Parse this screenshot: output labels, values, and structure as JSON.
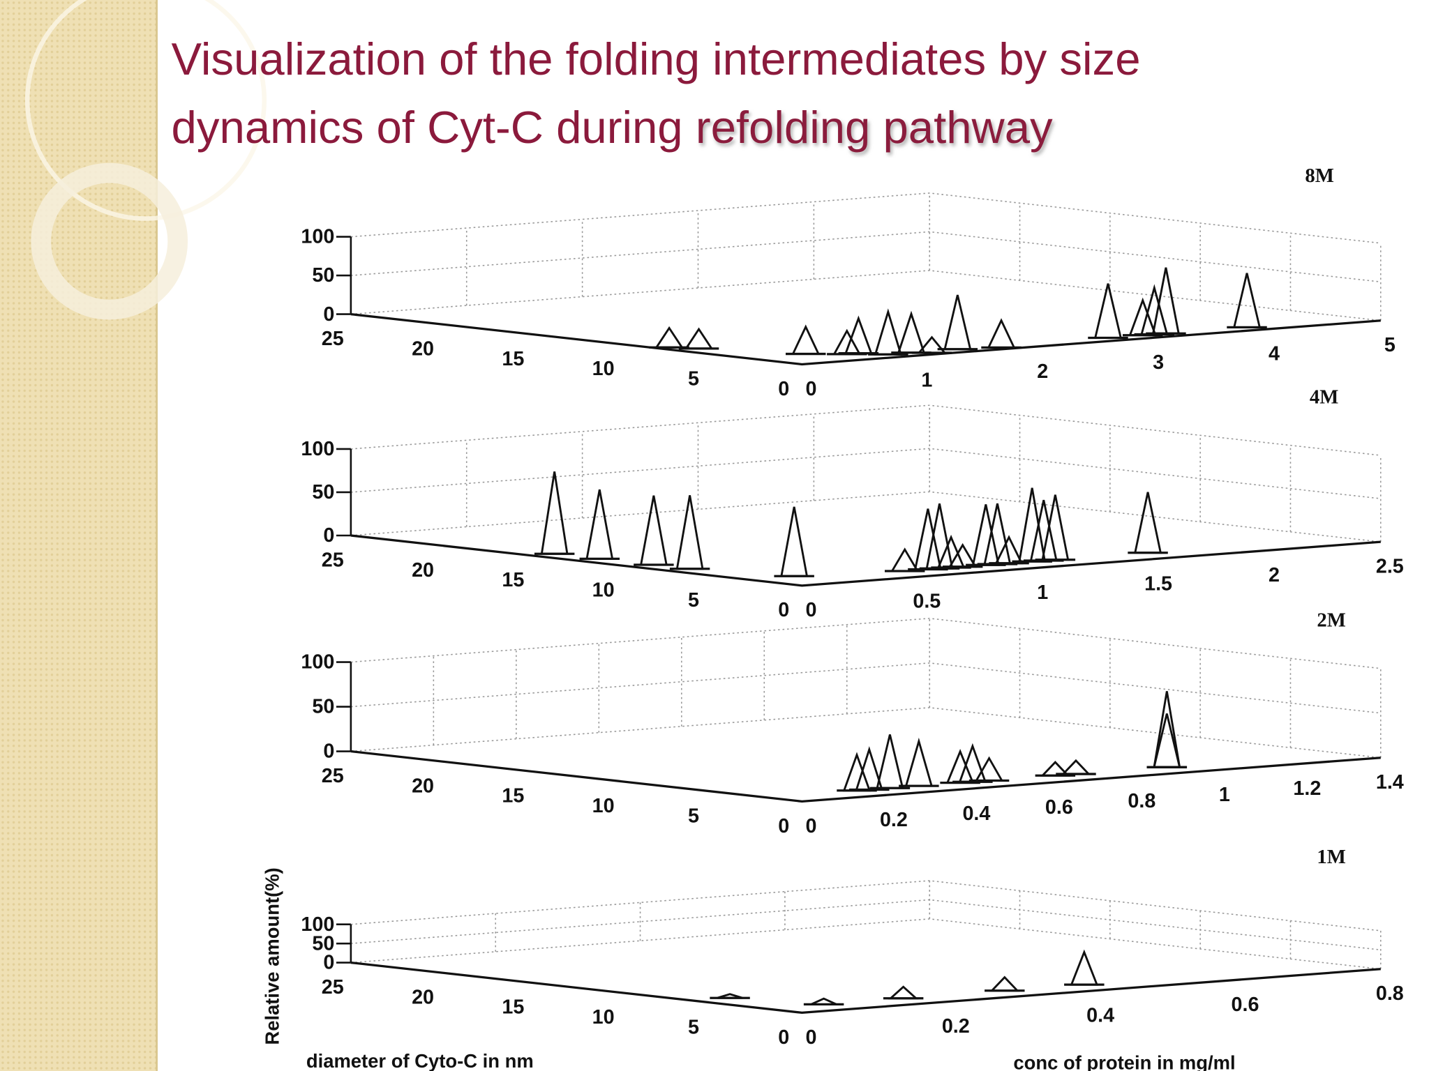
{
  "title_line1": "Visualization of the folding intermediates by size",
  "title_line2": "dynamics of Cyt-C during",
  "title_highlight": "refolding pathway",
  "chart_data": [
    {
      "type": "3d-peaks",
      "title": "8M",
      "z_label": "Relative amount(%)",
      "zlim": [
        0,
        100
      ],
      "zticks": [
        0,
        50,
        100
      ],
      "ylim": [
        0,
        25
      ],
      "yticks": [
        25,
        20,
        15,
        10,
        5,
        0
      ],
      "xlim": [
        0,
        5
      ],
      "xticks": [
        0,
        1,
        2,
        3,
        4,
        5
      ],
      "peaks": [
        {
          "conc": 0.1,
          "diameter": 8,
          "amount": 25
        },
        {
          "conc": 0.2,
          "diameter": 7,
          "amount": 25
        },
        {
          "conc": 0.5,
          "diameter": 3,
          "amount": 35
        },
        {
          "conc": 0.7,
          "diameter": 2,
          "amount": 30
        },
        {
          "conc": 0.8,
          "diameter": 2,
          "amount": 45
        },
        {
          "conc": 0.9,
          "diameter": 1,
          "amount": 55
        },
        {
          "conc": 1.1,
          "diameter": 1,
          "amount": 50
        },
        {
          "conc": 1.2,
          "diameter": 0.5,
          "amount": 20
        },
        {
          "conc": 1.5,
          "diameter": 1,
          "amount": 70
        },
        {
          "conc": 1.8,
          "diameter": 0.5,
          "amount": 35
        },
        {
          "conc": 2.8,
          "diameter": 1,
          "amount": 70
        },
        {
          "conc": 3.1,
          "diameter": 1,
          "amount": 45
        },
        {
          "conc": 3.2,
          "diameter": 1,
          "amount": 60
        },
        {
          "conc": 3.3,
          "diameter": 1,
          "amount": 85
        },
        {
          "conc": 4.0,
          "diameter": 1,
          "amount": 70
        }
      ]
    },
    {
      "type": "3d-peaks",
      "title": "4M",
      "zlim": [
        0,
        100
      ],
      "zticks": [
        0,
        50,
        100
      ],
      "ylim": [
        0,
        25
      ],
      "yticks": [
        25,
        20,
        15,
        10,
        5,
        0
      ],
      "xlim": [
        0,
        2.5
      ],
      "xticks": [
        0,
        0.5,
        1,
        1.5,
        2,
        2.5
      ],
      "peaks": [
        {
          "conc": 0.1,
          "diameter": 15,
          "amount": 95
        },
        {
          "conc": 0.1,
          "diameter": 12.5,
          "amount": 80
        },
        {
          "conc": 0.1,
          "diameter": 9.5,
          "amount": 80
        },
        {
          "conc": 0.1,
          "diameter": 7.5,
          "amount": 85
        },
        {
          "conc": 0.2,
          "diameter": 3,
          "amount": 80
        },
        {
          "conc": 0.6,
          "diameter": 2,
          "amount": 25
        },
        {
          "conc": 0.7,
          "diameter": 2,
          "amount": 70
        },
        {
          "conc": 0.75,
          "diameter": 2,
          "amount": 75
        },
        {
          "conc": 0.8,
          "diameter": 2,
          "amount": 35
        },
        {
          "conc": 0.85,
          "diameter": 2,
          "amount": 25
        },
        {
          "conc": 0.95,
          "diameter": 2,
          "amount": 70
        },
        {
          "conc": 1.0,
          "diameter": 2,
          "amount": 70
        },
        {
          "conc": 1.05,
          "diameter": 2,
          "amount": 30
        },
        {
          "conc": 1.15,
          "diameter": 2,
          "amount": 85
        },
        {
          "conc": 1.2,
          "diameter": 2,
          "amount": 70
        },
        {
          "conc": 1.25,
          "diameter": 2,
          "amount": 75
        },
        {
          "conc": 1.65,
          "diameter": 2,
          "amount": 70
        }
      ]
    },
    {
      "type": "3d-peaks",
      "title": "2M",
      "zlim": [
        0,
        100
      ],
      "zticks": [
        0,
        50,
        100
      ],
      "ylim": [
        0,
        25
      ],
      "yticks": [
        25,
        20,
        15,
        10,
        5,
        0
      ],
      "xlim": [
        0,
        1.4
      ],
      "xticks": [
        0,
        0.2,
        0.4,
        0.6,
        0.8,
        1,
        1.2,
        1.4
      ],
      "peaks": [
        {
          "conc": 0.22,
          "diameter": 2,
          "amount": 40
        },
        {
          "conc": 0.25,
          "diameter": 2,
          "amount": 45
        },
        {
          "conc": 0.3,
          "diameter": 2,
          "amount": 60
        },
        {
          "conc": 0.37,
          "diameter": 2,
          "amount": 50
        },
        {
          "conc": 0.47,
          "diameter": 2,
          "amount": 35
        },
        {
          "conc": 0.5,
          "diameter": 2,
          "amount": 40
        },
        {
          "conc": 0.54,
          "diameter": 2,
          "amount": 25
        },
        {
          "conc": 0.7,
          "diameter": 2,
          "amount": 15
        },
        {
          "conc": 0.75,
          "diameter": 2,
          "amount": 15
        },
        {
          "conc": 0.97,
          "diameter": 2,
          "amount": 85
        },
        {
          "conc": 0.97,
          "diameter": 2,
          "amount": 60
        }
      ]
    },
    {
      "type": "3d-peaks",
      "title": "1M",
      "y_label": "diameter of Cyto-C in nm",
      "x_label": "conc of protein in mg/ml",
      "zlim": [
        0,
        100
      ],
      "zticks": [
        0,
        50,
        100
      ],
      "ylim": [
        0,
        25
      ],
      "yticks": [
        25,
        20,
        15,
        10,
        5,
        0
      ],
      "xlim": [
        0,
        0.8
      ],
      "xticks": [
        0,
        0.2,
        0.4,
        0.6,
        0.8
      ],
      "peaks": [
        {
          "conc": 0.05,
          "diameter": 6,
          "amount": 10
        },
        {
          "conc": 0.08,
          "diameter": 2,
          "amount": 15
        },
        {
          "conc": 0.19,
          "diameter": 2,
          "amount": 30
        },
        {
          "conc": 0.33,
          "diameter": 2,
          "amount": 35
        },
        {
          "conc": 0.44,
          "diameter": 2,
          "amount": 85
        }
      ]
    }
  ]
}
